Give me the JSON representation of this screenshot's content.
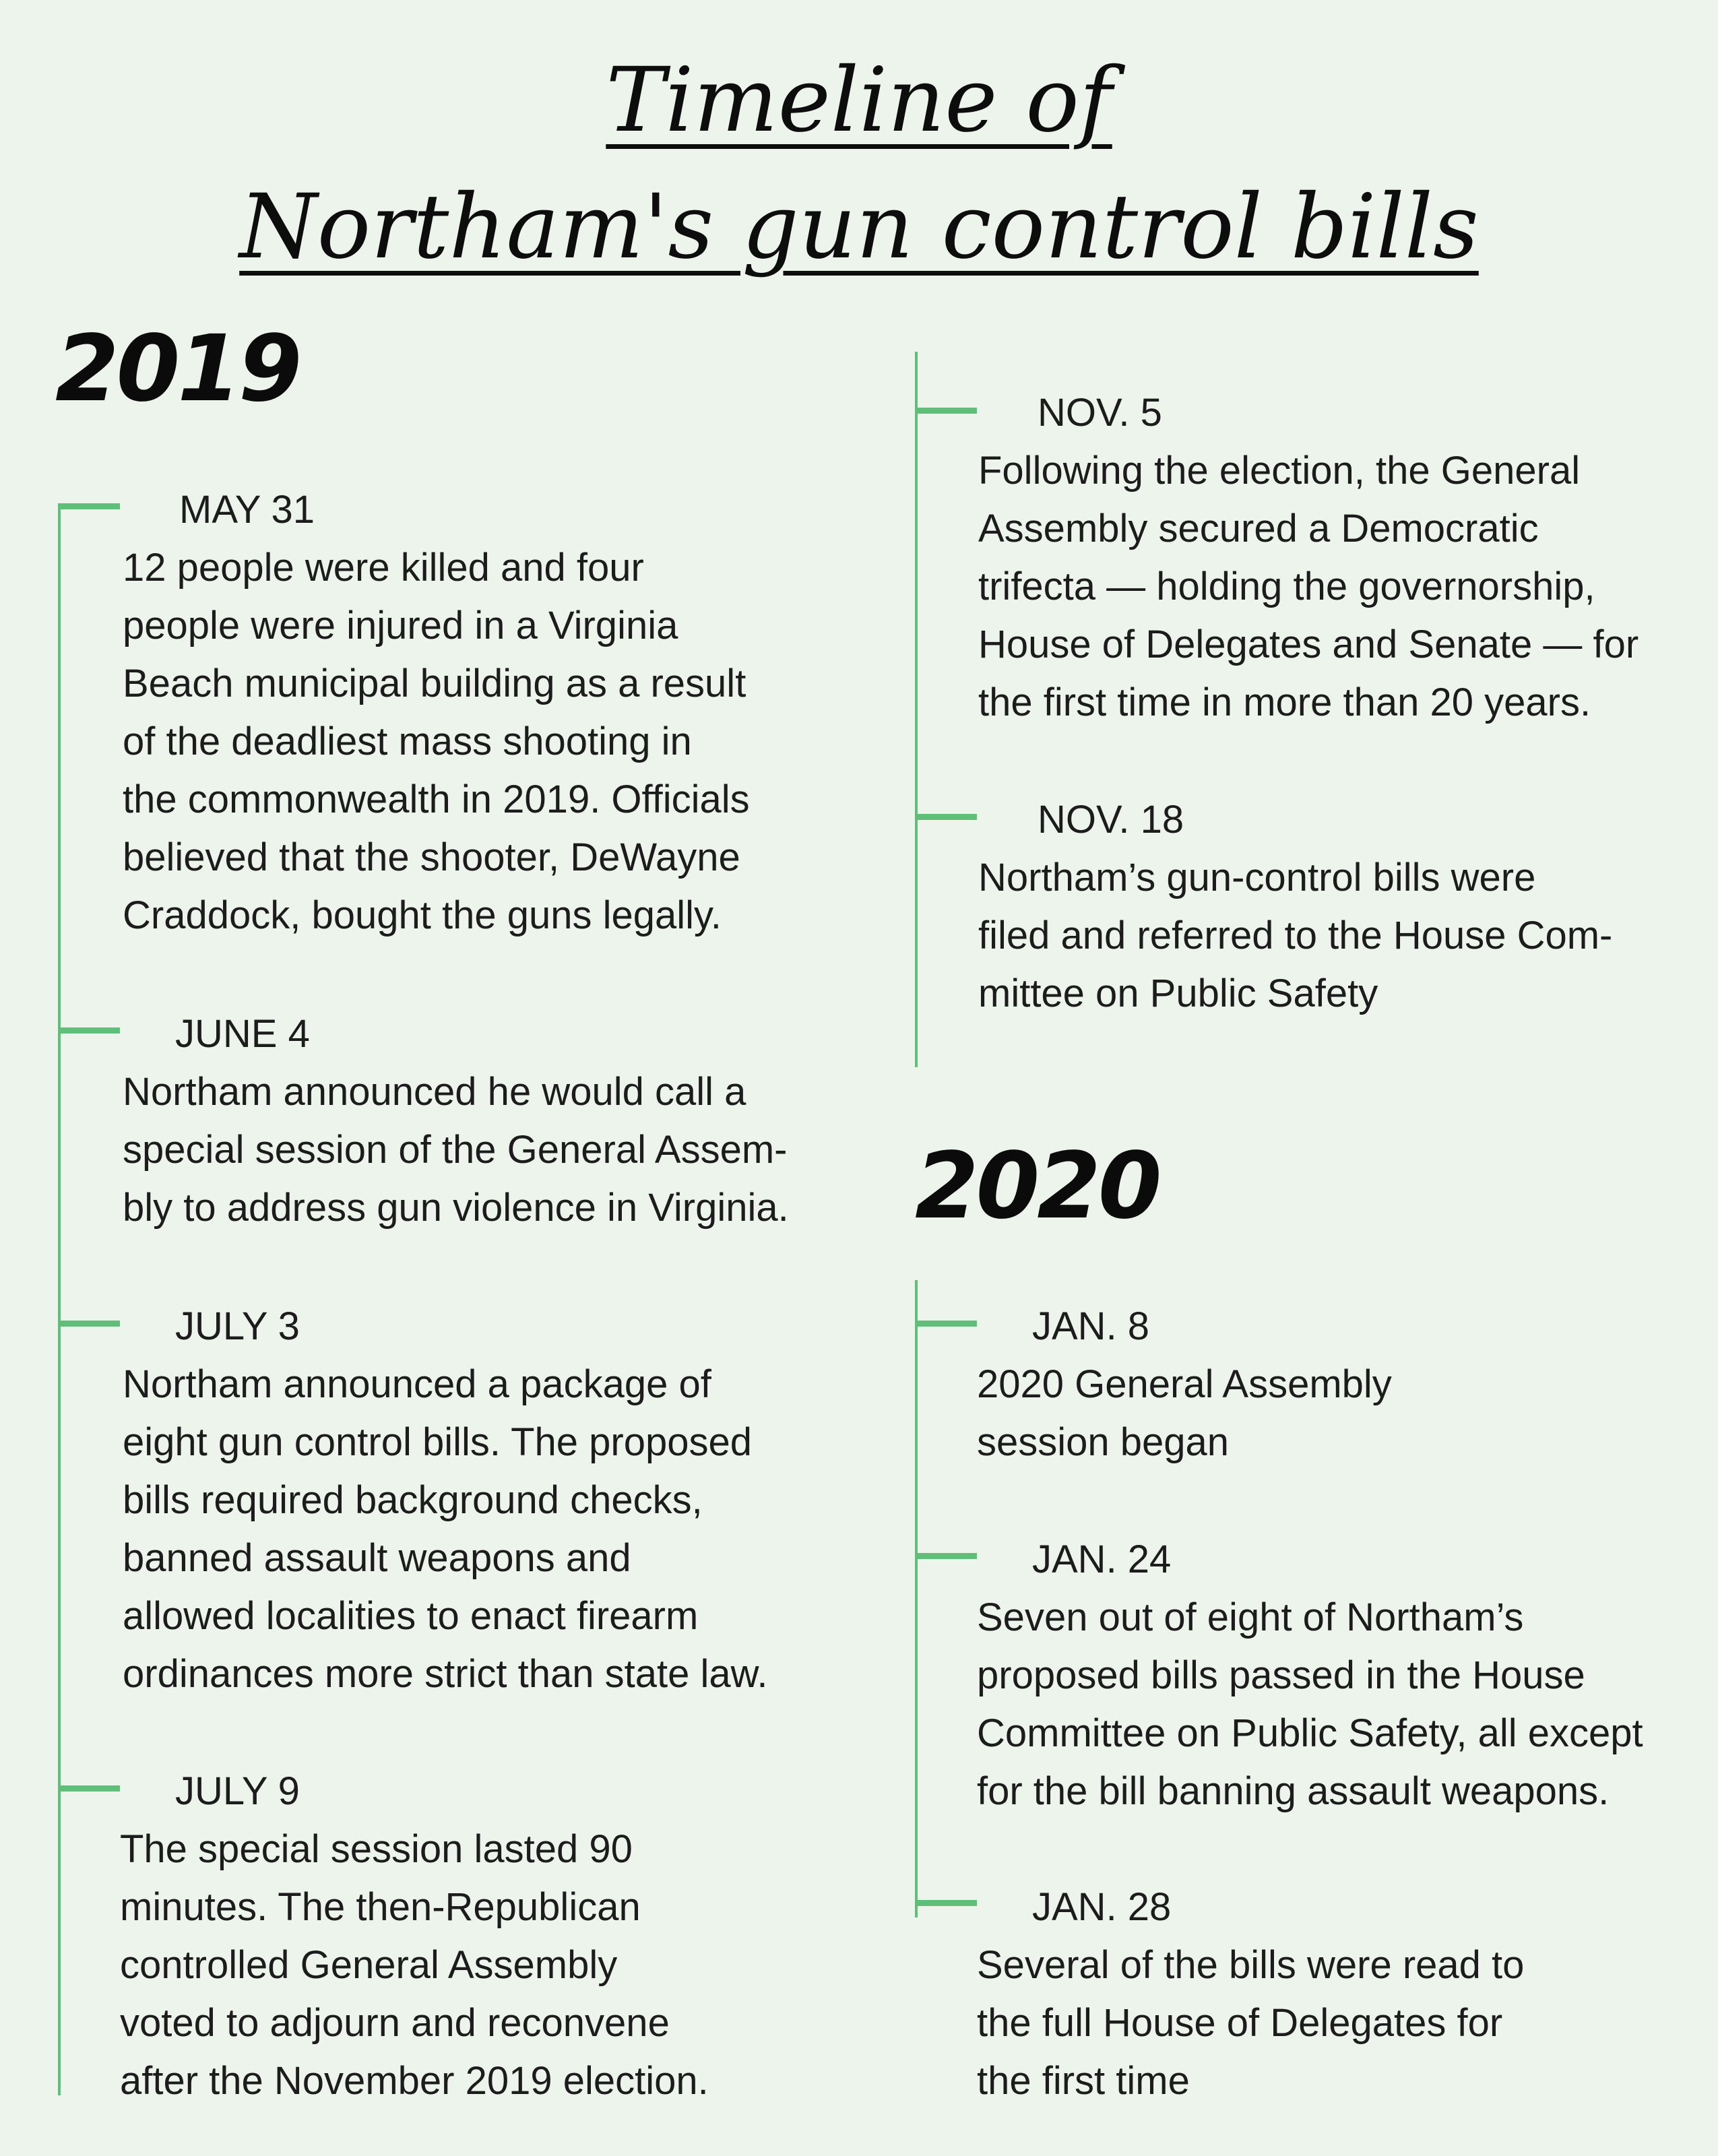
{
  "title": {
    "line1": "Timeline of",
    "line2": "Northam's gun control bills"
  },
  "years": {
    "y2019": "2019",
    "y2020": "2020"
  },
  "events": [
    {
      "date": "MAY 31",
      "description": "12 people were killed and four\npeople were injured in a Virginia\nBeach municipal building as a result\nof the deadliest mass shooting in\nthe commonwealth in 2019. Officials\nbelieved that the shooter, DeWayne\nCraddock, bought the guns legally."
    },
    {
      "date": "JUNE 4",
      "description": "Northam announced he would call a\nspecial session of the General Assem-\nbly to address gun violence in Virginia."
    },
    {
      "date": "JULY 3",
      "description": "Northam announced a package of\neight gun control bills. The proposed\nbills required background checks,\nbanned assault weapons and\nallowed localities to enact firearm\nordinances more strict than state law."
    },
    {
      "date": "JULY 9",
      "description": "The special session lasted 90\nminutes. The then-Republican\ncontrolled General Assembly\nvoted to adjourn and reconvene\nafter the November 2019 election."
    },
    {
      "date": "NOV.  5",
      "description": "Following the election, the General\nAssembly secured a Democratic\ntrifecta — holding the governorship,\nHouse of Delegates and Senate — for\nthe first time in more than 20 years."
    },
    {
      "date": "NOV. 18",
      "description": "Northam’s gun-control bills were\nfiled and referred to the House Com-\nmittee on Public Safety"
    },
    {
      "date": "JAN. 8",
      "description": "2020 General Assembly\nsession began"
    },
    {
      "date": "JAN. 24",
      "description": "Seven out of eight of Northam’s\nproposed bills passed in the House\nCommittee on Public Safety, all except\nfor the bill banning assault weapons."
    },
    {
      "date": "JAN. 28",
      "description": "Several of the bills were read to\nthe full House of Delegates for\nthe first time"
    }
  ]
}
